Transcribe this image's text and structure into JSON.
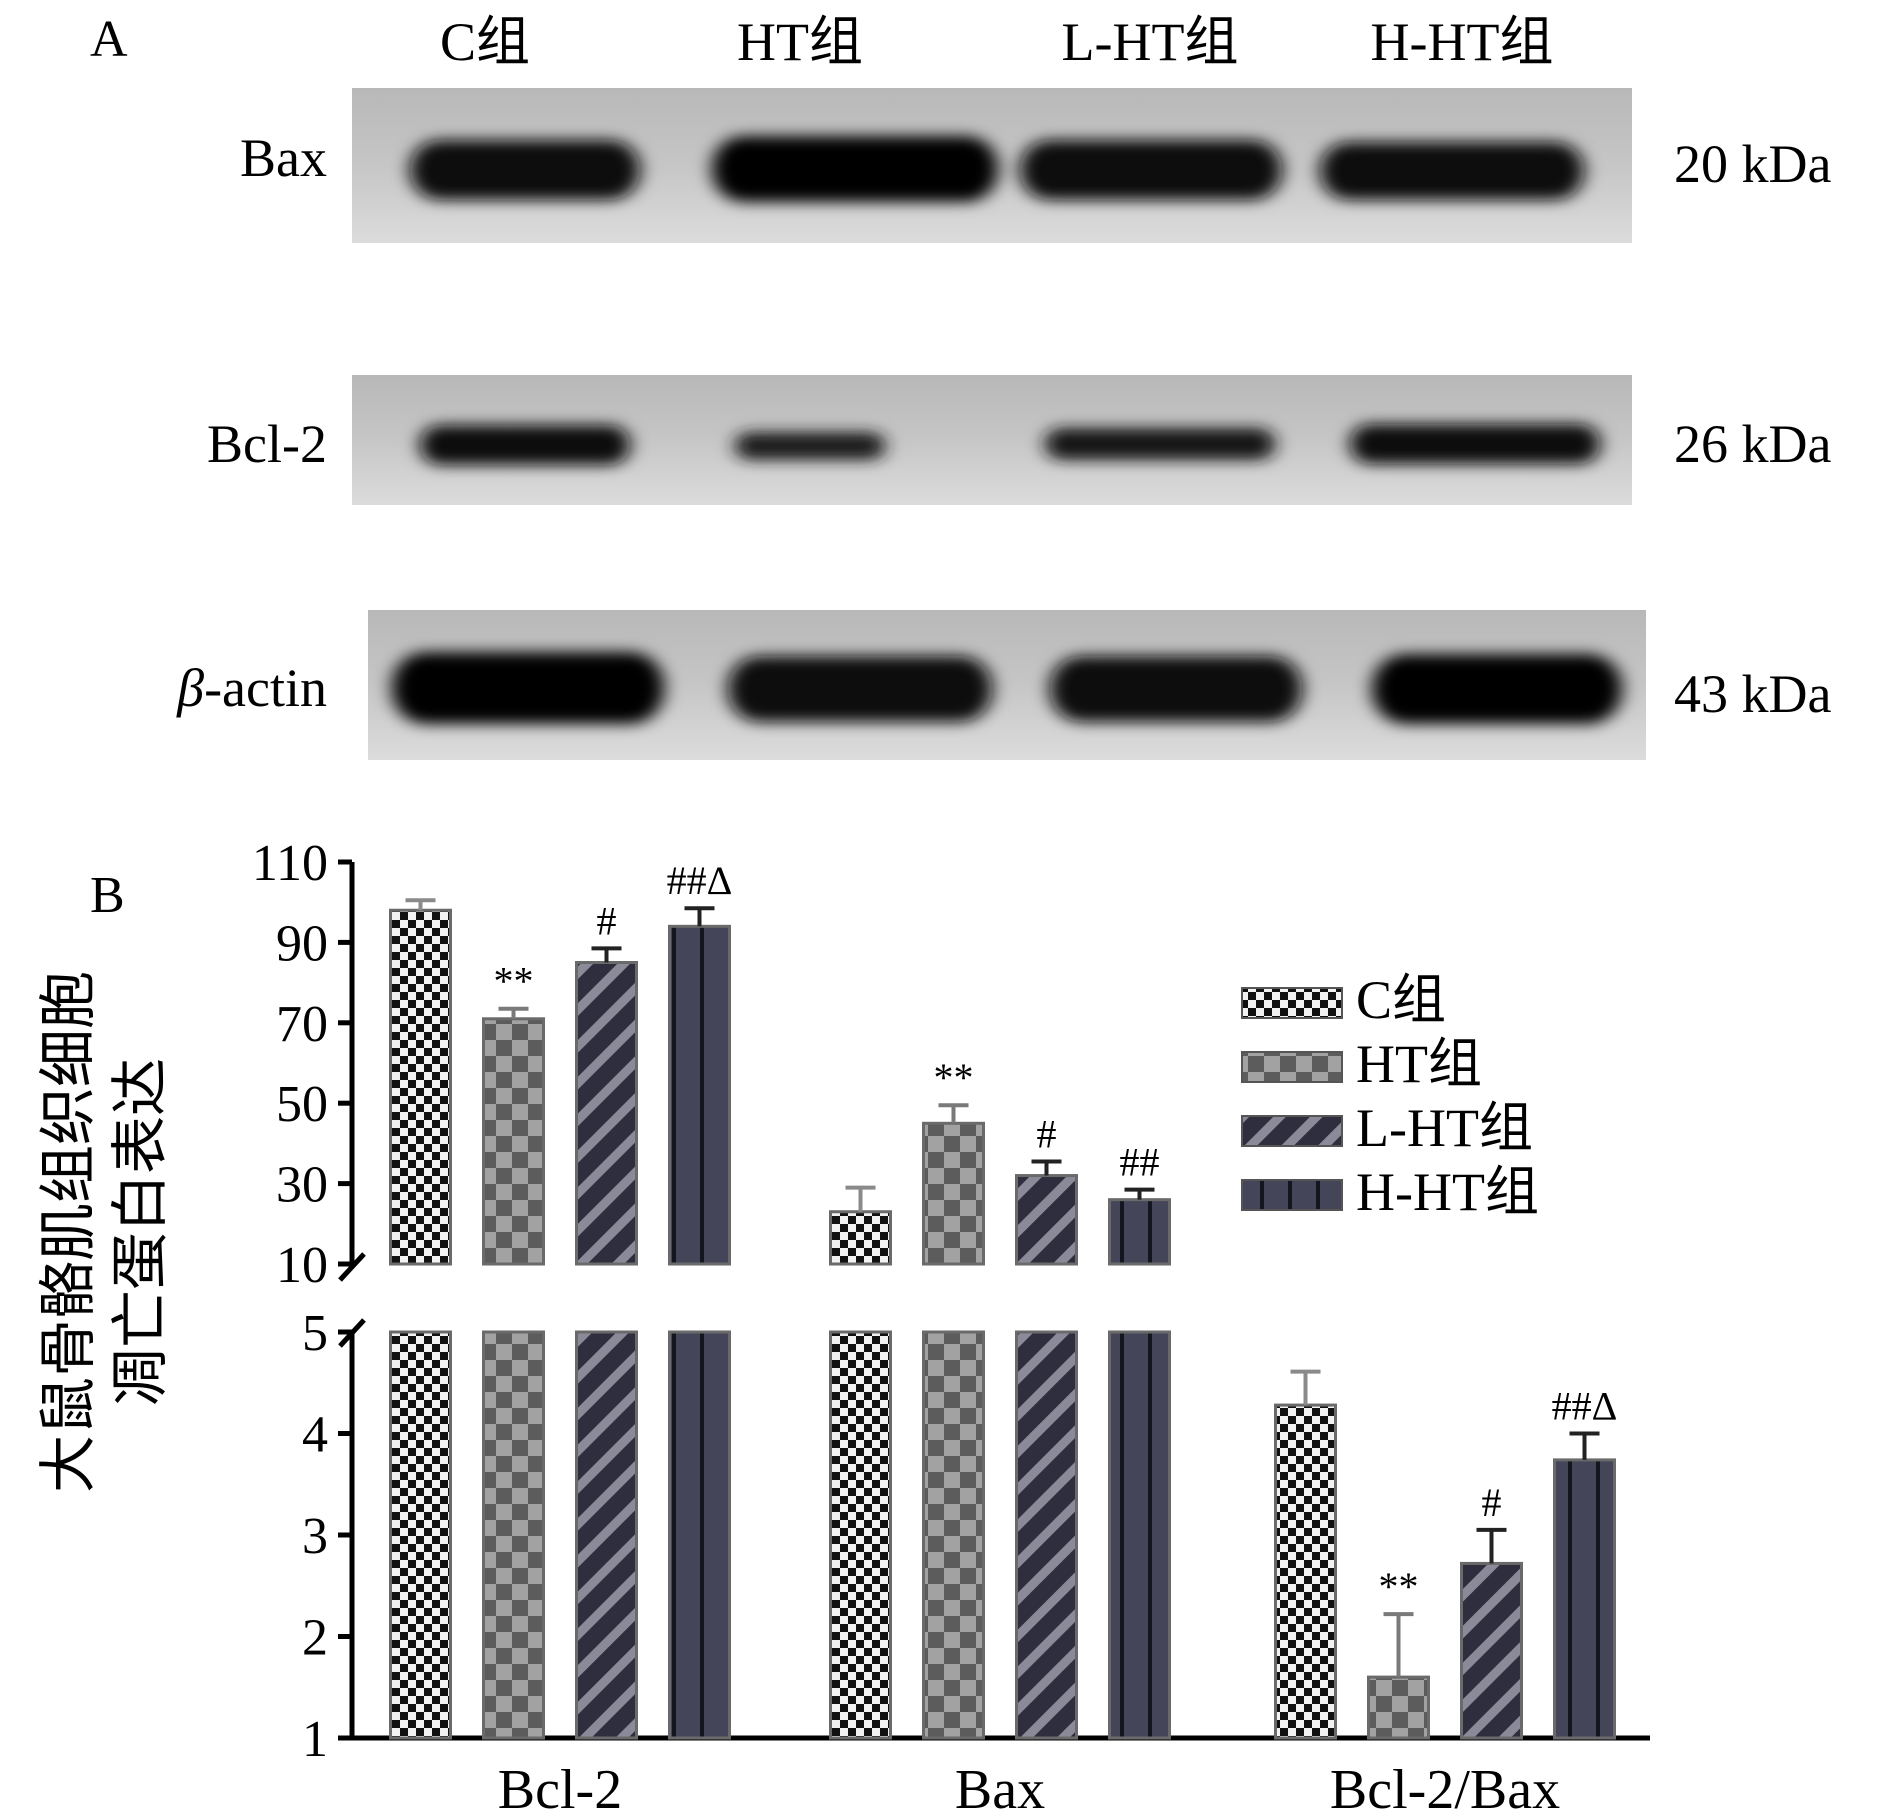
{
  "panel_a": {
    "panel_label": "A",
    "lanes": [
      "C组",
      "HT组",
      "L-HT组",
      "H-HT组"
    ],
    "blots": [
      {
        "protein": "Bax",
        "size": "20 kDa",
        "intensity": [
          0.9,
          0.97,
          0.9,
          0.88
        ]
      },
      {
        "protein": "Bcl-2",
        "size": "26 kDa",
        "intensity": [
          0.88,
          0.62,
          0.72,
          0.82
        ]
      },
      {
        "protein_italic": "β",
        "protein": "-actin",
        "size": "43 kDa",
        "intensity": [
          0.97,
          0.95,
          0.95,
          0.96
        ]
      }
    ]
  },
  "panel_b": {
    "panel_label": "B",
    "ylabel_line1": "大鼠骨骼肌组织细胞",
    "ylabel_line2": "凋亡蛋白表达"
  },
  "chart_data": {
    "type": "bar",
    "title": "",
    "xlabel": "",
    "ylabel": "大鼠骨骼肌组织细胞凋亡蛋白表达",
    "broken_y_axis": true,
    "y_upper_segment": {
      "range": [
        10,
        110
      ],
      "ticks": [
        10,
        30,
        50,
        70,
        90,
        110
      ]
    },
    "y_lower_segment": {
      "range": [
        1,
        5
      ],
      "ticks": [
        1,
        2,
        3,
        4,
        5
      ]
    },
    "categories": [
      "Bcl-2",
      "Bax",
      "Bcl-2/Bax"
    ],
    "series": [
      {
        "name": "C组",
        "pattern": "fine-checker",
        "values": [
          98,
          23,
          4.28
        ],
        "errors": [
          2.5,
          6,
          0.33
        ],
        "marks": [
          "",
          "",
          ""
        ]
      },
      {
        "name": "HT组",
        "pattern": "coarse-checker",
        "values": [
          71,
          45,
          1.6
        ],
        "errors": [
          2.5,
          4.5,
          0.62
        ],
        "marks": [
          "**",
          "**",
          "**"
        ]
      },
      {
        "name": "L-HT组",
        "pattern": "diagonal",
        "values": [
          85,
          32,
          2.72
        ],
        "errors": [
          3.5,
          3.5,
          0.33
        ],
        "marks": [
          "#",
          "#",
          "#"
        ]
      },
      {
        "name": "H-HT组",
        "pattern": "vertical-stripe",
        "values": [
          94,
          26,
          3.74
        ],
        "errors": [
          4.5,
          2.5,
          0.26
        ],
        "marks": [
          "##Δ",
          "##",
          "##Δ"
        ]
      }
    ],
    "legend": {
      "position": "right",
      "entries": [
        "C组",
        "HT组",
        "L-HT组",
        "H-HT组"
      ]
    },
    "grid": false
  }
}
